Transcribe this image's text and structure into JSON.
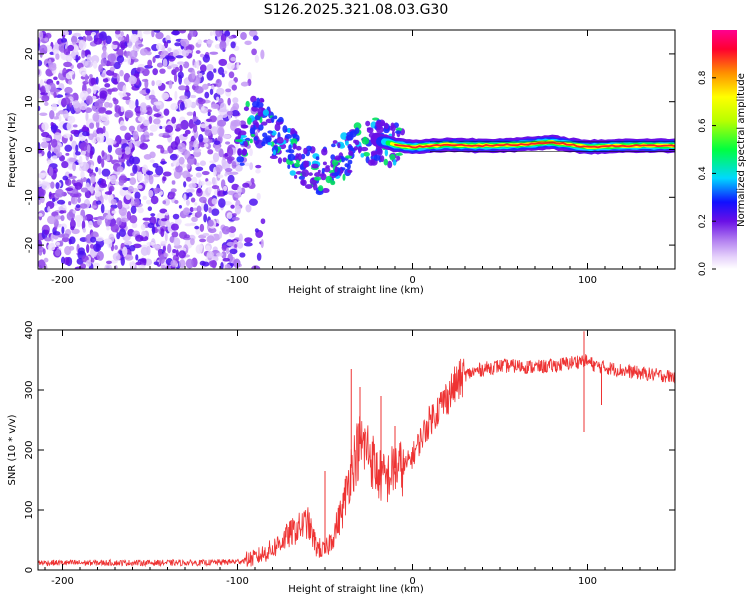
{
  "title": "S126.2025.321.08.03.G30",
  "chart_data": [
    {
      "type": "heatmap",
      "title": "S126.2025.321.08.03.G30",
      "xlabel": "Height of straight line (km)",
      "ylabel": "Frequency (Hz)",
      "xlim": [
        -214,
        150
      ],
      "ylim": [
        -25,
        25
      ],
      "xticks": [
        -200,
        -100,
        0,
        100
      ],
      "yticks": [
        -20,
        -10,
        0,
        10,
        20
      ],
      "colorbar": {
        "label": "Normalized spectral amplitude",
        "range": [
          0,
          1
        ],
        "ticks": [
          0.0,
          0.2,
          0.4,
          0.6,
          0.8
        ],
        "colors": [
          "#ffffff",
          "#c89cf0",
          "#7a1ee6",
          "#1010ff",
          "#00e6ff",
          "#00ff40",
          "#ffff00",
          "#ff9000",
          "#ff0040",
          "#ff0080"
        ]
      },
      "noise_region_x": [
        -214,
        -95
      ],
      "signal_track": [
        {
          "x": -95,
          "y": 5
        },
        {
          "x": -88,
          "y": 7
        },
        {
          "x": -80,
          "y": 3
        },
        {
          "x": -72,
          "y": 1
        },
        {
          "x": -65,
          "y": -2
        },
        {
          "x": -58,
          "y": -4
        },
        {
          "x": -52,
          "y": -5
        },
        {
          "x": -45,
          "y": -3
        },
        {
          "x": -38,
          "y": -1
        },
        {
          "x": -30,
          "y": 1
        },
        {
          "x": -20,
          "y": 2
        },
        {
          "x": -10,
          "y": 1
        },
        {
          "x": 0,
          "y": 0.5
        },
        {
          "x": 20,
          "y": 1
        },
        {
          "x": 40,
          "y": 0.8
        },
        {
          "x": 60,
          "y": 1
        },
        {
          "x": 80,
          "y": 1.5
        },
        {
          "x": 100,
          "y": 0.5
        },
        {
          "x": 120,
          "y": 0.8
        },
        {
          "x": 150,
          "y": 0.8
        }
      ]
    },
    {
      "type": "line",
      "xlabel": "Height of straight line (km)",
      "ylabel": "SNR (10 * v/v)",
      "xlim": [
        -214,
        150
      ],
      "ylim": [
        0,
        400
      ],
      "xticks": [
        -200,
        -100,
        0,
        100
      ],
      "yticks": [
        0,
        100,
        200,
        300,
        400
      ],
      "series": [
        {
          "name": "SNR",
          "color": "#ee3333",
          "points": [
            {
              "x": -214,
              "y": 12
            },
            {
              "x": -180,
              "y": 12
            },
            {
              "x": -150,
              "y": 12
            },
            {
              "x": -120,
              "y": 12
            },
            {
              "x": -100,
              "y": 14
            },
            {
              "x": -90,
              "y": 20
            },
            {
              "x": -80,
              "y": 35
            },
            {
              "x": -70,
              "y": 60
            },
            {
              "x": -60,
              "y": 80
            },
            {
              "x": -55,
              "y": 40
            },
            {
              "x": -50,
              "y": 30
            },
            {
              "x": -45,
              "y": 60
            },
            {
              "x": -40,
              "y": 100
            },
            {
              "x": -35,
              "y": 170
            },
            {
              "x": -30,
              "y": 210
            },
            {
              "x": -25,
              "y": 200
            },
            {
              "x": -20,
              "y": 160
            },
            {
              "x": -15,
              "y": 150
            },
            {
              "x": -10,
              "y": 170
            },
            {
              "x": -5,
              "y": 170
            },
            {
              "x": 0,
              "y": 190
            },
            {
              "x": 5,
              "y": 220
            },
            {
              "x": 10,
              "y": 250
            },
            {
              "x": 15,
              "y": 270
            },
            {
              "x": 20,
              "y": 290
            },
            {
              "x": 25,
              "y": 310
            },
            {
              "x": 30,
              "y": 325
            },
            {
              "x": 40,
              "y": 335
            },
            {
              "x": 50,
              "y": 340
            },
            {
              "x": 60,
              "y": 340
            },
            {
              "x": 70,
              "y": 338
            },
            {
              "x": 80,
              "y": 340
            },
            {
              "x": 90,
              "y": 345
            },
            {
              "x": 98,
              "y": 350
            },
            {
              "x": 105,
              "y": 340
            },
            {
              "x": 115,
              "y": 335
            },
            {
              "x": 130,
              "y": 328
            },
            {
              "x": 150,
              "y": 322
            }
          ],
          "spikes": [
            {
              "x": -50,
              "y": 165
            },
            {
              "x": -35,
              "y": 335
            },
            {
              "x": -30,
              "y": 305
            },
            {
              "x": -18,
              "y": 290
            },
            {
              "x": -10,
              "y": 240
            },
            {
              "x": 98,
              "y": 398
            },
            {
              "x": 98,
              "y": 230
            },
            {
              "x": 108,
              "y": 275
            }
          ]
        }
      ]
    }
  ]
}
